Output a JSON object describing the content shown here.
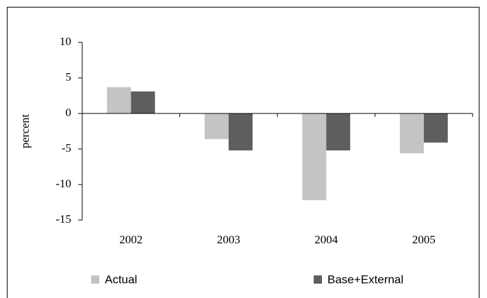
{
  "chart_data": {
    "type": "bar",
    "y_label": "percent",
    "categories": [
      "2002",
      "2003",
      "2004",
      "2005"
    ],
    "series": [
      {
        "name": "Actual",
        "color": "#c4c4c4",
        "values": [
          3.7,
          -3.6,
          -12.2,
          -5.6
        ]
      },
      {
        "name": "Base+External",
        "color": "#5e5e5e",
        "values": [
          3.1,
          -5.2,
          -5.2,
          -4.1
        ]
      }
    ],
    "ylim": [
      -15,
      10
    ],
    "yticks": [
      -15,
      -10,
      -5,
      0,
      5,
      10
    ],
    "grid": false,
    "legend": "bottom"
  }
}
